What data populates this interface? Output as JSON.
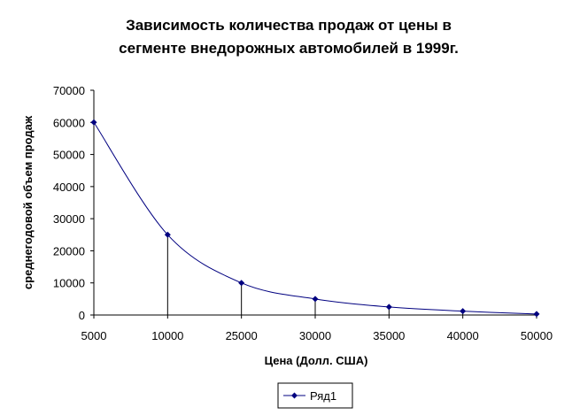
{
  "chart_data": {
    "type": "line",
    "title_lines": [
      "Зависимость количества продаж от цены в",
      "сегменте внедорожных автомобилей в 1999г."
    ],
    "xlabel": "Цена (Долл. США)",
    "ylabel": "среднегодовой объем продаж",
    "categories": [
      "5000",
      "10000",
      "25000",
      "30000",
      "35000",
      "40000",
      "50000"
    ],
    "y_ticks": [
      "0",
      "10000",
      "20000",
      "30000",
      "40000",
      "50000",
      "60000",
      "70000"
    ],
    "ylim": [
      0,
      70000
    ],
    "series": [
      {
        "name": "Ряд1",
        "color": "#000080",
        "marker": "diamond",
        "smooth": true,
        "drop_lines": true,
        "values": [
          60000,
          25000,
          10000,
          5000,
          2500,
          1200,
          300
        ]
      }
    ],
    "grid": false,
    "legend_position": "bottom-right"
  }
}
